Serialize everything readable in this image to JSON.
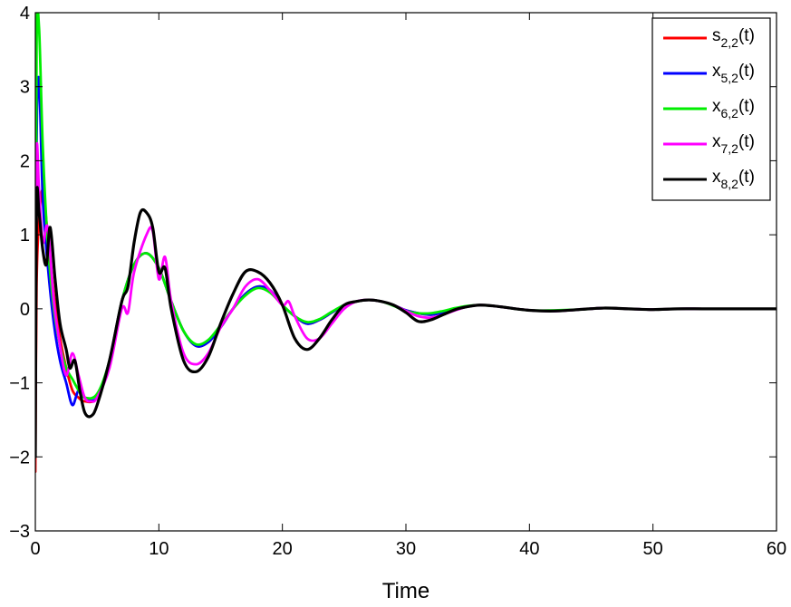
{
  "chart_data": {
    "type": "line",
    "title": "",
    "xlabel": "Time",
    "ylabel": "",
    "xlim": [
      0,
      60
    ],
    "ylim": [
      -3,
      4
    ],
    "xticks": [
      0,
      10,
      20,
      30,
      40,
      50,
      60
    ],
    "yticks": [
      -3,
      -2,
      -1,
      0,
      1,
      2,
      3,
      4
    ],
    "xtick_labels": [
      "0",
      "10",
      "20",
      "30",
      "40",
      "50",
      "60"
    ],
    "ytick_labels": [
      "−3",
      "−2",
      "−1",
      "0",
      "1",
      "2",
      "3",
      "4"
    ],
    "grid": false,
    "legend_position": "top-right",
    "series": [
      {
        "name": "s_{2,2}(t)",
        "label_main": "s",
        "label_sub": "2,2",
        "label_suffix": "(t)",
        "color": "#ff0000",
        "x": [
          0,
          0.1,
          0.3,
          0.6,
          1.0,
          1.5,
          2.0,
          2.5,
          3.0,
          3.5,
          4.0,
          5.0,
          6.0,
          7.0,
          8.0,
          9.0,
          10.0,
          11.0,
          12.0,
          13.0,
          14.0,
          15.0,
          16.0,
          17.0,
          18.0,
          19.0,
          20.0,
          21.0,
          22.0,
          23.0,
          24.0,
          25.0,
          26.0,
          27.0,
          28.0,
          29.0,
          30.0,
          31.0,
          32.0,
          33.0,
          34.0,
          35.0,
          36.0,
          37.0,
          38.0,
          40.0,
          42.0,
          44.0,
          46.0,
          48.0,
          50.0,
          52.0,
          54.0,
          56.0,
          58.0,
          60.0
        ],
        "y": [
          -2.2,
          0.3,
          1.2,
          1.6,
          1.0,
          0.2,
          -0.4,
          -0.8,
          -1.1,
          -1.2,
          -1.25,
          -1.2,
          -0.7,
          0.1,
          0.6,
          0.75,
          0.55,
          0.1,
          -0.3,
          -0.5,
          -0.45,
          -0.25,
          0.0,
          0.2,
          0.3,
          0.25,
          0.05,
          -0.1,
          -0.2,
          -0.15,
          -0.05,
          0.05,
          0.1,
          0.12,
          0.1,
          0.05,
          -0.02,
          -0.06,
          -0.08,
          -0.05,
          -0.01,
          0.03,
          0.05,
          0.04,
          0.02,
          -0.02,
          -0.03,
          -0.01,
          0.01,
          0.0,
          -0.01,
          0.0,
          0.0,
          0.0,
          0.0,
          0.0
        ]
      },
      {
        "name": "x_{5,2}(t)",
        "label_main": "x",
        "label_sub": "5,2",
        "label_suffix": "(t)",
        "color": "#0000ff",
        "x": [
          0,
          0.1,
          0.3,
          0.6,
          1.0,
          1.5,
          2.0,
          2.5,
          3.0,
          3.5,
          4.0,
          5.0,
          6.0,
          7.0,
          8.0,
          9.0,
          10.0,
          11.0,
          12.0,
          13.0,
          14.0,
          15.0,
          16.0,
          17.0,
          18.0,
          19.0,
          20.0,
          21.0,
          22.0,
          23.0,
          24.0,
          25.0,
          26.0,
          27.0,
          28.0,
          29.0,
          30.0,
          31.0,
          32.0,
          33.0,
          34.0,
          35.0,
          36.0,
          37.0,
          38.0,
          40.0,
          42.0,
          44.0,
          46.0,
          48.0,
          50.0,
          52.0,
          54.0,
          56.0,
          58.0,
          60.0
        ],
        "y": [
          -1.8,
          2.2,
          3.1,
          1.5,
          0.6,
          -0.2,
          -0.7,
          -1.0,
          -1.3,
          -1.1,
          -1.2,
          -1.2,
          -0.7,
          0.1,
          0.6,
          0.75,
          0.55,
          0.1,
          -0.3,
          -0.5,
          -0.45,
          -0.25,
          0.0,
          0.2,
          0.3,
          0.25,
          0.05,
          -0.1,
          -0.2,
          -0.15,
          -0.05,
          0.05,
          0.1,
          0.12,
          0.1,
          0.05,
          -0.02,
          -0.06,
          -0.08,
          -0.05,
          -0.01,
          0.03,
          0.05,
          0.04,
          0.02,
          -0.02,
          -0.03,
          -0.01,
          0.01,
          0.0,
          -0.01,
          0.0,
          0.0,
          0.0,
          0.0,
          0.0
        ]
      },
      {
        "name": "x_{6,2}(t)",
        "label_main": "x",
        "label_sub": "6,2",
        "label_suffix": "(t)",
        "color": "#00ee00",
        "x": [
          0,
          0.1,
          0.3,
          0.6,
          1.0,
          1.5,
          2.0,
          2.5,
          3.0,
          3.5,
          4.0,
          5.0,
          6.0,
          7.0,
          8.0,
          9.0,
          10.0,
          11.0,
          12.0,
          13.0,
          14.0,
          15.0,
          16.0,
          17.0,
          18.0,
          19.0,
          20.0,
          21.0,
          22.0,
          23.0,
          24.0,
          25.0,
          26.0,
          27.0,
          28.0,
          29.0,
          30.0,
          31.0,
          32.0,
          33.0,
          34.0,
          35.0,
          36.0,
          37.0,
          38.0,
          40.0,
          42.0,
          44.0,
          46.0,
          48.0,
          50.0,
          52.0,
          54.0,
          56.0,
          58.0,
          60.0
        ],
        "y": [
          -1.5,
          3.5,
          3.8,
          2.2,
          0.9,
          0.0,
          -0.5,
          -0.8,
          -0.95,
          -1.1,
          -1.2,
          -1.15,
          -0.7,
          0.1,
          0.6,
          0.75,
          0.55,
          0.1,
          -0.3,
          -0.48,
          -0.42,
          -0.22,
          0.0,
          0.18,
          0.28,
          0.22,
          0.05,
          -0.1,
          -0.18,
          -0.14,
          -0.04,
          0.05,
          0.1,
          0.12,
          0.1,
          0.04,
          -0.03,
          -0.06,
          -0.06,
          -0.03,
          0.01,
          0.04,
          0.05,
          0.04,
          0.02,
          -0.02,
          -0.02,
          -0.01,
          0.01,
          0.0,
          -0.01,
          0.0,
          0.0,
          0.0,
          0.0,
          0.0
        ]
      },
      {
        "name": "x_{7,2}(t)",
        "label_main": "x",
        "label_sub": "7,2",
        "label_suffix": "(t)",
        "color": "#ff00ff",
        "x": [
          0,
          0.1,
          0.3,
          0.6,
          1.0,
          1.5,
          2.0,
          2.5,
          3.0,
          3.5,
          4.0,
          4.5,
          5.0,
          6.0,
          7.0,
          7.5,
          8.0,
          9.0,
          9.5,
          10.0,
          10.5,
          11.0,
          12.0,
          13.0,
          14.0,
          15.0,
          16.0,
          17.0,
          18.0,
          19.0,
          20.0,
          20.5,
          21.0,
          22.0,
          23.0,
          24.0,
          25.0,
          26.0,
          27.0,
          28.0,
          29.0,
          30.0,
          31.0,
          32.0,
          33.0,
          34.0,
          35.0,
          36.0,
          37.0,
          38.0,
          40.0,
          42.0,
          44.0,
          46.0,
          48.0,
          50.0,
          52.0,
          54.0,
          56.0,
          58.0,
          60.0
        ],
        "y": [
          -1.0,
          2.1,
          1.6,
          0.9,
          1.1,
          0.1,
          -0.5,
          -0.9,
          -0.6,
          -0.9,
          -1.2,
          -1.25,
          -1.2,
          -0.8,
          0.0,
          -0.05,
          0.5,
          1.0,
          1.05,
          0.4,
          0.7,
          0.1,
          -0.6,
          -0.75,
          -0.6,
          -0.25,
          0.0,
          0.3,
          0.4,
          0.25,
          0.05,
          0.1,
          -0.1,
          -0.4,
          -0.4,
          -0.2,
          0.0,
          0.1,
          0.12,
          0.1,
          0.05,
          -0.03,
          -0.1,
          -0.12,
          -0.08,
          -0.02,
          0.03,
          0.05,
          0.04,
          0.02,
          -0.02,
          -0.03,
          -0.01,
          0.01,
          0.0,
          -0.01,
          0.0,
          0.0,
          0.0,
          0.0,
          0.0
        ]
      },
      {
        "name": "x_{8,2}(t)",
        "label_main": "x",
        "label_sub": "8,2",
        "label_suffix": "(t)",
        "color": "#000000",
        "x": [
          0,
          0.1,
          0.3,
          0.6,
          0.9,
          1.2,
          1.6,
          2.0,
          2.5,
          2.8,
          3.2,
          3.6,
          4.0,
          4.5,
          5.0,
          6.0,
          7.0,
          7.5,
          8.0,
          8.5,
          9.0,
          9.5,
          10.0,
          10.5,
          11.0,
          12.0,
          13.0,
          14.0,
          15.0,
          16.0,
          17.0,
          18.0,
          19.0,
          20.0,
          21.0,
          22.0,
          23.0,
          24.0,
          25.0,
          26.0,
          27.0,
          28.0,
          29.0,
          30.0,
          31.0,
          32.0,
          33.0,
          34.0,
          35.0,
          36.0,
          37.0,
          38.0,
          40.0,
          42.0,
          44.0,
          46.0,
          48.0,
          50.0,
          52.0,
          54.0,
          56.0,
          58.0,
          60.0
        ],
        "y": [
          -2.0,
          1.4,
          1.3,
          0.8,
          0.6,
          1.1,
          0.4,
          -0.2,
          -0.55,
          -0.8,
          -0.7,
          -1.1,
          -1.4,
          -1.45,
          -1.3,
          -0.7,
          0.1,
          0.3,
          0.9,
          1.3,
          1.3,
          1.1,
          0.5,
          0.55,
          0.0,
          -0.7,
          -0.85,
          -0.65,
          -0.2,
          0.2,
          0.5,
          0.5,
          0.35,
          0.05,
          -0.4,
          -0.55,
          -0.4,
          -0.15,
          0.05,
          0.1,
          0.12,
          0.1,
          0.05,
          -0.05,
          -0.17,
          -0.15,
          -0.08,
          -0.01,
          0.03,
          0.05,
          0.04,
          0.02,
          -0.02,
          -0.03,
          -0.01,
          0.01,
          0.0,
          -0.01,
          0.0,
          0.0,
          0.0,
          0.0,
          0.0
        ]
      }
    ]
  }
}
